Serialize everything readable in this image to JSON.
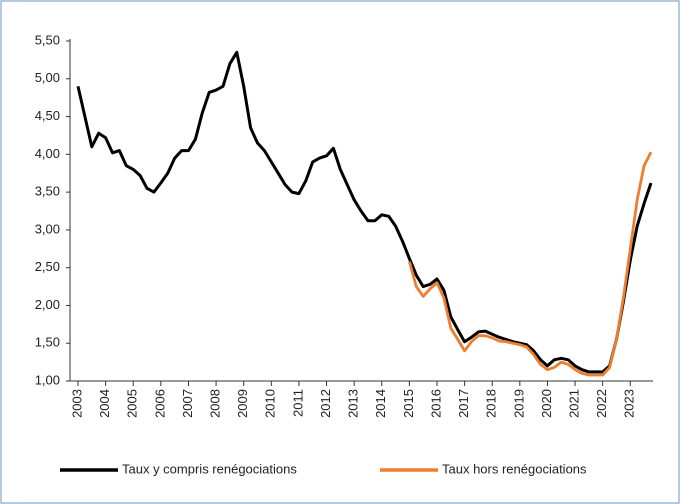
{
  "chart_data": {
    "type": "line",
    "categories": [
      "2003",
      null,
      null,
      null,
      "2004",
      null,
      null,
      null,
      "2005",
      null,
      null,
      null,
      "2006",
      null,
      null,
      null,
      "2007",
      null,
      null,
      null,
      "2008",
      null,
      null,
      null,
      "2009",
      null,
      null,
      null,
      "2010",
      null,
      null,
      null,
      "2011",
      null,
      null,
      null,
      "2012",
      null,
      null,
      null,
      "2013",
      null,
      null,
      null,
      "2014",
      null,
      null,
      null,
      "2015",
      null,
      null,
      null,
      "2016",
      null,
      null,
      null,
      "2017",
      null,
      null,
      null,
      "2018",
      null,
      null,
      null,
      "2019",
      null,
      null,
      null,
      "2020",
      null,
      null,
      null,
      "2021",
      null,
      null,
      null,
      "2022",
      null,
      null,
      null,
      "2023",
      null,
      null,
      null
    ],
    "series": [
      {
        "name": "Taux y compris renégociations",
        "color": "#000000",
        "values": [
          4.9,
          4.5,
          4.1,
          4.28,
          4.22,
          4.02,
          4.05,
          3.85,
          3.8,
          3.72,
          3.55,
          3.5,
          3.62,
          3.75,
          3.95,
          4.05,
          4.05,
          4.2,
          4.55,
          4.82,
          4.85,
          4.9,
          5.2,
          5.35,
          4.9,
          4.35,
          4.15,
          4.05,
          3.9,
          3.75,
          3.6,
          3.5,
          3.48,
          3.65,
          3.9,
          3.95,
          3.98,
          4.08,
          3.8,
          3.6,
          3.4,
          3.25,
          3.12,
          3.12,
          3.2,
          3.18,
          3.05,
          2.85,
          2.62,
          2.4,
          2.25,
          2.28,
          2.35,
          2.2,
          1.85,
          1.68,
          1.52,
          1.58,
          1.65,
          1.66,
          1.62,
          1.58,
          1.55,
          1.52,
          1.5,
          1.48,
          1.4,
          1.28,
          1.2,
          1.28,
          1.3,
          1.28,
          1.2,
          1.15,
          1.12,
          1.12,
          1.12,
          1.2,
          1.55,
          2.05,
          2.6,
          3.05,
          3.35,
          3.62
        ]
      },
      {
        "name": "Taux hors renégociations",
        "color": "#ed7d31",
        "values": [
          null,
          null,
          null,
          null,
          null,
          null,
          null,
          null,
          null,
          null,
          null,
          null,
          null,
          null,
          null,
          null,
          null,
          null,
          null,
          null,
          null,
          null,
          null,
          null,
          null,
          null,
          null,
          null,
          null,
          null,
          null,
          null,
          null,
          null,
          null,
          null,
          null,
          null,
          null,
          null,
          null,
          null,
          null,
          null,
          null,
          null,
          null,
          null,
          2.58,
          2.25,
          2.12,
          2.22,
          2.3,
          2.1,
          1.7,
          1.55,
          1.4,
          1.52,
          1.6,
          1.6,
          1.57,
          1.53,
          1.52,
          1.5,
          1.48,
          1.45,
          1.35,
          1.22,
          1.15,
          1.18,
          1.25,
          1.22,
          1.15,
          1.1,
          1.08,
          1.08,
          1.08,
          1.18,
          1.55,
          2.1,
          2.75,
          3.4,
          3.85,
          4.03
        ]
      }
    ],
    "ylim": [
      1,
      5.5
    ],
    "yticks": [
      {
        "value": 1,
        "label": "1,00"
      },
      {
        "value": 1.5,
        "label": "1,50"
      },
      {
        "value": 2,
        "label": "2,00"
      },
      {
        "value": 2.5,
        "label": "2,50"
      },
      {
        "value": 3,
        "label": "3,00"
      },
      {
        "value": 3.5,
        "label": "3,50"
      },
      {
        "value": 4,
        "label": "4,00"
      },
      {
        "value": 4.5,
        "label": "4,50"
      },
      {
        "value": 5,
        "label": "5,00"
      },
      {
        "value": 5.5,
        "label": "5,50"
      }
    ],
    "grid": false,
    "legend": "bottom"
  }
}
